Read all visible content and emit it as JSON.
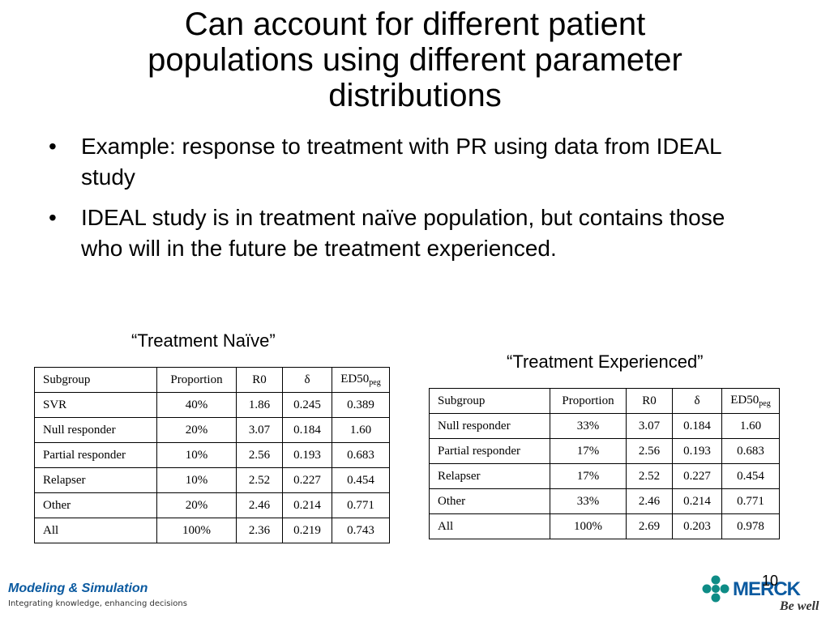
{
  "slide": {
    "title_lines": [
      "Can account for different patient",
      "populations using different parameter",
      "distributions"
    ],
    "bullets": [
      "Example:  response to treatment with PR using data from IDEAL study",
      "IDEAL study is in treatment naïve population, but contains those who will in the future be treatment experienced."
    ],
    "bullet_glyph": "•",
    "page_number": "10"
  },
  "table_naive": {
    "caption": "“Treatment Naïve”",
    "headers": [
      "Subgroup",
      "Proportion",
      "R0",
      "δ",
      "ED50",
      "peg"
    ],
    "rows": [
      [
        "SVR",
        "40%",
        "1.86",
        "0.245",
        "0.389"
      ],
      [
        "Null responder",
        "20%",
        "3.07",
        "0.184",
        "1.60"
      ],
      [
        "Partial responder",
        "10%",
        "2.56",
        "0.193",
        "0.683"
      ],
      [
        "Relapser",
        "10%",
        "2.52",
        "0.227",
        "0.454"
      ],
      [
        "Other",
        "20%",
        "2.46",
        "0.214",
        "0.771"
      ],
      [
        "All",
        "100%",
        "2.36",
        "0.219",
        "0.743"
      ]
    ]
  },
  "table_experienced": {
    "caption": "“Treatment Experienced”",
    "headers": [
      "Subgroup",
      "Proportion",
      "R0",
      "δ",
      "ED50",
      "peg"
    ],
    "rows": [
      [
        "Null responder",
        "33%",
        "3.07",
        "0.184",
        "1.60"
      ],
      [
        "Partial responder",
        "17%",
        "2.56",
        "0.193",
        "0.683"
      ],
      [
        "Relapser",
        "17%",
        "2.52",
        "0.227",
        "0.454"
      ],
      [
        "Other",
        "33%",
        "2.46",
        "0.214",
        "0.771"
      ],
      [
        "All",
        "100%",
        "2.69",
        "0.203",
        "0.978"
      ]
    ]
  },
  "footer": {
    "brand": "Modeling & Simulation",
    "tagline": "Integrating knowledge, enhancing decisions",
    "logo_word": "MERCK",
    "logo_slogan": "Be well",
    "brand_color": "#0b5aa0",
    "logo_teal": "#0e8c86"
  }
}
